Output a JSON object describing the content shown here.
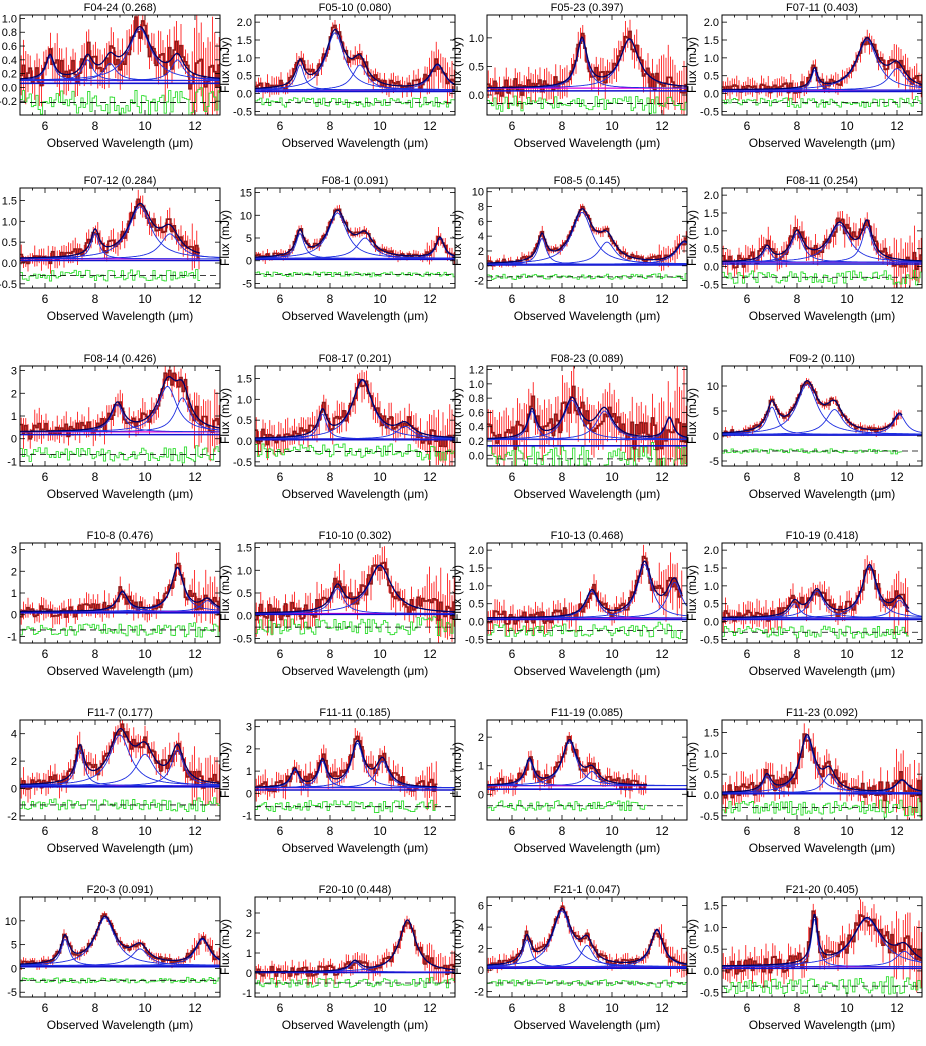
{
  "figure": {
    "xlabel": "Observed Wavelength (μm)",
    "ylabel": "Flux (mJy)",
    "xlim": [
      5,
      13
    ],
    "xticks": [
      6,
      8,
      10,
      12
    ],
    "colors": {
      "data_outline": "#8B1A1A",
      "errorbars": "#FF2020",
      "residual": "#33DD33",
      "fit_total": "#000066",
      "components": "#1F2FE0",
      "continuum": "#DD00DD",
      "baseline": "#1010CC"
    }
  },
  "chart_data": [
    {
      "type": "line",
      "title": "F04-24 (0.268)",
      "ylim": [
        -0.4,
        1.05
      ],
      "yticks": [
        -0.2,
        0.0,
        0.2,
        0.4,
        0.6,
        0.8,
        1.0
      ],
      "ytick_labels": [
        "-0.2",
        "0.0",
        "0.2",
        "0.4",
        "0.6",
        "0.8",
        "1.0"
      ],
      "xmax": 13,
      "continuum": 0.1,
      "resid_offset": -0.22,
      "noise": 0.2,
      "peaks": [
        {
          "x": 6.2,
          "h": 0.35,
          "w": 0.2
        },
        {
          "x": 7.7,
          "h": 0.3,
          "w": 0.25
        },
        {
          "x": 8.6,
          "h": 0.25,
          "w": 0.3
        },
        {
          "x": 9.8,
          "h": 0.75,
          "w": 0.55
        },
        {
          "x": 11.3,
          "h": 0.3,
          "w": 0.3
        }
      ]
    },
    {
      "type": "line",
      "title": "F05-10 (0.080)",
      "ylim": [
        -0.6,
        2.2
      ],
      "yticks": [
        -0.5,
        0.0,
        0.5,
        1.0,
        1.5,
        2.0
      ],
      "ytick_labels": [
        "-0.5",
        "0.0",
        "0.5",
        "1.0",
        "1.5",
        "2.0"
      ],
      "xmax": 13,
      "continuum": 0.1,
      "resid_offset": -0.25,
      "noise": 0.15,
      "peaks": [
        {
          "x": 6.8,
          "h": 0.7,
          "w": 0.2
        },
        {
          "x": 8.2,
          "h": 1.6,
          "w": 0.45
        },
        {
          "x": 9.2,
          "h": 0.7,
          "w": 0.35
        },
        {
          "x": 12.3,
          "h": 0.7,
          "w": 0.35
        }
      ]
    },
    {
      "type": "line",
      "title": "F05-23 (0.397)",
      "ylim": [
        -0.35,
        1.4
      ],
      "yticks": [
        0.0,
        0.5,
        1.0
      ],
      "ytick_labels": [
        "0.0",
        "0.5",
        "1.0"
      ],
      "xmax": 13,
      "continuum": 0.12,
      "resid_offset": -0.15,
      "noise": 0.15,
      "peaks": [
        {
          "x": 8.8,
          "h": 0.85,
          "w": 0.25
        },
        {
          "x": 10.7,
          "h": 0.85,
          "w": 0.45
        }
      ]
    },
    {
      "type": "line",
      "title": "F07-11 (0.403)",
      "ylim": [
        -0.6,
        2.2
      ],
      "yticks": [
        -0.5,
        0.0,
        0.5,
        1.0,
        1.5,
        2.0
      ],
      "ytick_labels": [
        "-0.5",
        "0.0",
        "0.5",
        "1.0",
        "1.5",
        "2.0"
      ],
      "xmax": 13,
      "continuum": 0.1,
      "resid_offset": -0.25,
      "noise": 0.15,
      "peaks": [
        {
          "x": 8.7,
          "h": 0.55,
          "w": 0.15
        },
        {
          "x": 10.8,
          "h": 1.4,
          "w": 0.5
        },
        {
          "x": 12.0,
          "h": 0.6,
          "w": 0.4
        }
      ]
    },
    {
      "type": "line",
      "title": "F07-12 (0.284)",
      "ylim": [
        -0.6,
        1.8
      ],
      "yticks": [
        -0.5,
        0.0,
        0.5,
        1.0,
        1.5
      ],
      "ytick_labels": [
        "-0.5",
        "0.0",
        "0.5",
        "1.0",
        "1.5"
      ],
      "xmax": 12.2,
      "continuum": 0.1,
      "resid_offset": -0.3,
      "noise": 0.15,
      "peaks": [
        {
          "x": 8.0,
          "h": 0.6,
          "w": 0.2
        },
        {
          "x": 9.8,
          "h": 1.25,
          "w": 0.55
        },
        {
          "x": 11.0,
          "h": 0.6,
          "w": 0.45
        }
      ]
    },
    {
      "type": "line",
      "title": "F08-1 (0.091)",
      "ylim": [
        -6,
        16
      ],
      "yticks": [
        -5,
        0,
        5,
        10,
        15
      ],
      "ytick_labels": [
        "-5",
        "0",
        "5",
        "10",
        "15"
      ],
      "xmax": 13,
      "continuum": 0.5,
      "resid_offset": -3,
      "noise": 0.6,
      "peaks": [
        {
          "x": 6.8,
          "h": 5.5,
          "w": 0.2
        },
        {
          "x": 8.3,
          "h": 10,
          "w": 0.45
        },
        {
          "x": 9.4,
          "h": 4.5,
          "w": 0.4
        },
        {
          "x": 12.4,
          "h": 4.5,
          "w": 0.2
        }
      ]
    },
    {
      "type": "line",
      "title": "F08-5 (0.145)",
      "ylim": [
        -3,
        10.5
      ],
      "yticks": [
        -2,
        0,
        2,
        4,
        6,
        8,
        10
      ],
      "ytick_labels": [
        "-2",
        "0",
        "2",
        "4",
        "6",
        "8",
        "10"
      ],
      "xmax": 13,
      "continuum": 0.2,
      "resid_offset": -1.5,
      "noise": 0.4,
      "peaks": [
        {
          "x": 7.2,
          "h": 3.5,
          "w": 0.2
        },
        {
          "x": 8.8,
          "h": 7,
          "w": 0.5
        },
        {
          "x": 9.8,
          "h": 3,
          "w": 0.4
        },
        {
          "x": 12.9,
          "h": 3,
          "w": 0.4
        }
      ]
    },
    {
      "type": "line",
      "title": "F08-11 (0.254)",
      "ylim": [
        -0.6,
        2.2
      ],
      "yticks": [
        -0.5,
        0.0,
        0.5,
        1.0,
        1.5,
        2.0
      ],
      "ytick_labels": [
        "-0.5",
        "0.0",
        "0.5",
        "1.0",
        "1.5",
        "2.0"
      ],
      "xmax": 13,
      "continuum": 0.12,
      "resid_offset": -0.3,
      "noise": 0.2,
      "peaks": [
        {
          "x": 6.8,
          "h": 0.4,
          "w": 0.2
        },
        {
          "x": 8.0,
          "h": 0.8,
          "w": 0.3
        },
        {
          "x": 9.7,
          "h": 1.05,
          "w": 0.5
        },
        {
          "x": 10.8,
          "h": 1.0,
          "w": 0.25
        }
      ]
    },
    {
      "type": "line",
      "title": "F08-14 (0.426)",
      "ylim": [
        -1.2,
        3.2
      ],
      "yticks": [
        -1,
        0,
        1,
        2,
        3
      ],
      "ytick_labels": [
        "-1",
        "0",
        "1",
        "2",
        "3"
      ],
      "xmax": 13,
      "continuum": 0.3,
      "resid_offset": -0.7,
      "noise": 0.35,
      "peaks": [
        {
          "x": 8.9,
          "h": 1.2,
          "w": 0.3
        },
        {
          "x": 10.9,
          "h": 2.0,
          "w": 0.45
        },
        {
          "x": 11.5,
          "h": 1.5,
          "w": 0.35
        }
      ]
    },
    {
      "type": "line",
      "title": "F08-17 (0.201)",
      "ylim": [
        -0.6,
        1.8
      ],
      "yticks": [
        -0.5,
        0.0,
        0.5,
        1.0,
        1.5
      ],
      "ytick_labels": [
        "-0.5",
        "0.0",
        "0.5",
        "1.0",
        "1.5"
      ],
      "xmax": 13,
      "continuum": 0.05,
      "resid_offset": -0.25,
      "noise": 0.2,
      "peaks": [
        {
          "x": 7.7,
          "h": 0.6,
          "w": 0.2
        },
        {
          "x": 9.3,
          "h": 1.4,
          "w": 0.5
        },
        {
          "x": 11.0,
          "h": 0.3,
          "w": 0.4
        }
      ]
    },
    {
      "type": "line",
      "title": "F08-23 (0.089)",
      "ylim": [
        -0.15,
        1.25
      ],
      "yticks": [
        0.0,
        0.2,
        0.4,
        0.6,
        0.8,
        1.0,
        1.2
      ],
      "ytick_labels": [
        "0.0",
        "0.2",
        "0.4",
        "0.6",
        "0.8",
        "1.0",
        "1.2"
      ],
      "xmax": 13,
      "continuum": 0.22,
      "resid_offset": -0.05,
      "noise": 0.2,
      "peaks": [
        {
          "x": 6.8,
          "h": 0.4,
          "w": 0.2
        },
        {
          "x": 8.4,
          "h": 0.55,
          "w": 0.4
        },
        {
          "x": 9.7,
          "h": 0.4,
          "w": 0.4
        },
        {
          "x": 12.3,
          "h": 0.3,
          "w": 0.2
        }
      ]
    },
    {
      "type": "line",
      "title": "F09-2 (0.110)",
      "ylim": [
        -6,
        14
      ],
      "yticks": [
        -5,
        0,
        5,
        10
      ],
      "ytick_labels": [
        "-5",
        "0",
        "5",
        "10"
      ],
      "xmax": 12.2,
      "continuum": 0.3,
      "resid_offset": -3,
      "noise": 0.5,
      "peaks": [
        {
          "x": 7.0,
          "h": 5.5,
          "w": 0.25
        },
        {
          "x": 8.4,
          "h": 10,
          "w": 0.5
        },
        {
          "x": 9.5,
          "h": 5,
          "w": 0.4
        },
        {
          "x": 12.1,
          "h": 4,
          "w": 0.3
        }
      ]
    },
    {
      "type": "line",
      "title": "F10-8 (0.476)",
      "ylim": [
        -1.3,
        3.3
      ],
      "yticks": [
        -1,
        0,
        1,
        2,
        3
      ],
      "ytick_labels": [
        "-1",
        "0",
        "1",
        "2",
        "3"
      ],
      "xmax": 13,
      "continuum": 0.15,
      "resid_offset": -0.7,
      "noise": 0.3,
      "peaks": [
        {
          "x": 9.1,
          "h": 0.9,
          "w": 0.25
        },
        {
          "x": 11.3,
          "h": 2.0,
          "w": 0.3
        },
        {
          "x": 12.5,
          "h": 0.5,
          "w": 0.3
        }
      ]
    },
    {
      "type": "line",
      "title": "F10-10 (0.302)",
      "ylim": [
        -0.6,
        1.6
      ],
      "yticks": [
        -0.5,
        0.0,
        0.5,
        1.0,
        1.5
      ],
      "ytick_labels": [
        "-0.5",
        "0.0",
        "0.5",
        "1.0",
        "1.5"
      ],
      "xmax": 13,
      "continuum": 0.05,
      "resid_offset": -0.25,
      "noise": 0.2,
      "peaks": [
        {
          "x": 8.3,
          "h": 0.55,
          "w": 0.3
        },
        {
          "x": 10.0,
          "h": 1.05,
          "w": 0.55
        }
      ]
    },
    {
      "type": "line",
      "title": "F10-13 (0.468)",
      "ylim": [
        -0.6,
        2.2
      ],
      "yticks": [
        -0.5,
        0.0,
        0.5,
        1.0,
        1.5,
        2.0
      ],
      "ytick_labels": [
        "-0.5",
        "0.0",
        "0.5",
        "1.0",
        "1.5",
        "2.0"
      ],
      "xmax": 12.8,
      "continuum": 0.1,
      "resid_offset": -0.25,
      "noise": 0.2,
      "peaks": [
        {
          "x": 9.2,
          "h": 0.75,
          "w": 0.3
        },
        {
          "x": 11.3,
          "h": 1.5,
          "w": 0.35
        },
        {
          "x": 12.5,
          "h": 1.0,
          "w": 0.35
        }
      ]
    },
    {
      "type": "line",
      "title": "F10-19 (0.418)",
      "ylim": [
        -0.6,
        2.2
      ],
      "yticks": [
        -0.5,
        0.0,
        0.5,
        1.0,
        1.5,
        2.0
      ],
      "ytick_labels": [
        "-0.5",
        "0.0",
        "0.5",
        "1.0",
        "1.5",
        "2.0"
      ],
      "xmax": 12.5,
      "continuum": 0.1,
      "resid_offset": -0.3,
      "noise": 0.2,
      "peaks": [
        {
          "x": 7.9,
          "h": 0.4,
          "w": 0.25
        },
        {
          "x": 8.8,
          "h": 0.75,
          "w": 0.35
        },
        {
          "x": 10.9,
          "h": 1.45,
          "w": 0.35
        },
        {
          "x": 12.1,
          "h": 0.5,
          "w": 0.3
        }
      ]
    },
    {
      "type": "line",
      "title": "F11-7 (0.177)",
      "ylim": [
        -2.3,
        5
      ],
      "yticks": [
        -2,
        0,
        2,
        4
      ],
      "ytick_labels": [
        "-2",
        "0",
        "2",
        "4"
      ],
      "xmax": 13,
      "continuum": 0.2,
      "resid_offset": -1.2,
      "noise": 0.5,
      "peaks": [
        {
          "x": 7.4,
          "h": 2.6,
          "w": 0.2
        },
        {
          "x": 9.0,
          "h": 3.7,
          "w": 0.5
        },
        {
          "x": 10.0,
          "h": 2.3,
          "w": 0.45
        },
        {
          "x": 11.3,
          "h": 2.6,
          "w": 0.3
        }
      ]
    },
    {
      "type": "line",
      "title": "F11-11 (0.185)",
      "ylim": [
        -1.2,
        3.3
      ],
      "yticks": [
        -1,
        0,
        1,
        2,
        3
      ],
      "ytick_labels": [
        "-1",
        "0",
        "1",
        "2",
        "3"
      ],
      "xmax": 12.3,
      "continuum": 0.25,
      "resid_offset": -0.6,
      "noise": 0.3,
      "peaks": [
        {
          "x": 6.6,
          "h": 0.8,
          "w": 0.2
        },
        {
          "x": 7.7,
          "h": 1.2,
          "w": 0.2
        },
        {
          "x": 9.1,
          "h": 2.0,
          "w": 0.3
        },
        {
          "x": 10.1,
          "h": 1.2,
          "w": 0.3
        }
      ]
    },
    {
      "type": "line",
      "title": "F11-19 (0.085)",
      "ylim": [
        -0.9,
        2.6
      ],
      "yticks": [
        0,
        1,
        2
      ],
      "ytick_labels": [
        "0",
        "1",
        "2"
      ],
      "xmax": 11.4,
      "continuum": 0.3,
      "resid_offset": -0.4,
      "noise": 0.2,
      "peaks": [
        {
          "x": 6.7,
          "h": 0.9,
          "w": 0.2
        },
        {
          "x": 8.3,
          "h": 1.55,
          "w": 0.35
        },
        {
          "x": 9.2,
          "h": 0.5,
          "w": 0.3
        }
      ]
    },
    {
      "type": "line",
      "title": "F11-23 (0.092)",
      "ylim": [
        -0.6,
        1.8
      ],
      "yticks": [
        -0.5,
        0.0,
        0.5,
        1.0,
        1.5
      ],
      "ytick_labels": [
        "-0.5",
        "0.0",
        "0.5",
        "1.0",
        "1.5"
      ],
      "xmax": 13,
      "continuum": 0.05,
      "resid_offset": -0.3,
      "noise": 0.2,
      "peaks": [
        {
          "x": 6.8,
          "h": 0.4,
          "w": 0.2
        },
        {
          "x": 8.4,
          "h": 1.35,
          "w": 0.35
        },
        {
          "x": 9.3,
          "h": 0.45,
          "w": 0.3
        },
        {
          "x": 12.2,
          "h": 0.3,
          "w": 0.3
        }
      ]
    },
    {
      "type": "line",
      "title": "F20-3 (0.091)",
      "ylim": [
        -6,
        15
      ],
      "yticks": [
        -5,
        0,
        5,
        10
      ],
      "ytick_labels": [
        "-5",
        "0",
        "5",
        "10"
      ],
      "xmax": 13,
      "continuum": 0.6,
      "resid_offset": -2.5,
      "noise": 0.6,
      "peaks": [
        {
          "x": 6.8,
          "h": 5.5,
          "w": 0.2
        },
        {
          "x": 8.4,
          "h": 10,
          "w": 0.5
        },
        {
          "x": 9.8,
          "h": 3.5,
          "w": 0.4
        },
        {
          "x": 12.3,
          "h": 5.5,
          "w": 0.35
        }
      ]
    },
    {
      "type": "line",
      "title": "F20-10 (0.448)",
      "ylim": [
        -1.2,
        3.8
      ],
      "yticks": [
        -1,
        0,
        1,
        2,
        3
      ],
      "ytick_labels": [
        "-1",
        "0",
        "1",
        "2",
        "3"
      ],
      "xmax": 13,
      "continuum": 0.05,
      "resid_offset": -0.5,
      "noise": 0.25,
      "peaks": [
        {
          "x": 9.0,
          "h": 0.5,
          "w": 0.25
        },
        {
          "x": 11.1,
          "h": 2.6,
          "w": 0.4
        }
      ]
    },
    {
      "type": "line",
      "title": "F21-1 (0.047)",
      "ylim": [
        -2.5,
        6.8
      ],
      "yticks": [
        -2,
        0,
        2,
        4,
        6
      ],
      "ytick_labels": [
        "-2",
        "0",
        "2",
        "4",
        "6"
      ],
      "xmax": 13,
      "continuum": 0.3,
      "resid_offset": -1.2,
      "noise": 0.35,
      "peaks": [
        {
          "x": 6.6,
          "h": 2.5,
          "w": 0.2
        },
        {
          "x": 8.0,
          "h": 5.2,
          "w": 0.45
        },
        {
          "x": 9.0,
          "h": 2.0,
          "w": 0.3
        },
        {
          "x": 11.8,
          "h": 3.4,
          "w": 0.3
        }
      ]
    },
    {
      "type": "line",
      "title": "F21-20 (0.405)",
      "ylim": [
        -0.6,
        1.7
      ],
      "yticks": [
        -0.5,
        0.0,
        0.5,
        1.0,
        1.5
      ],
      "ytick_labels": [
        "-0.5",
        "0.0",
        "0.5",
        "1.0",
        "1.5"
      ],
      "xmax": 13,
      "continuum": 0.1,
      "resid_offset": -0.35,
      "noise": 0.2,
      "peaks": [
        {
          "x": 8.7,
          "h": 1.1,
          "w": 0.15
        },
        {
          "x": 10.8,
          "h": 1.1,
          "w": 0.7
        },
        {
          "x": 12.3,
          "h": 0.35,
          "w": 0.4
        }
      ]
    }
  ]
}
